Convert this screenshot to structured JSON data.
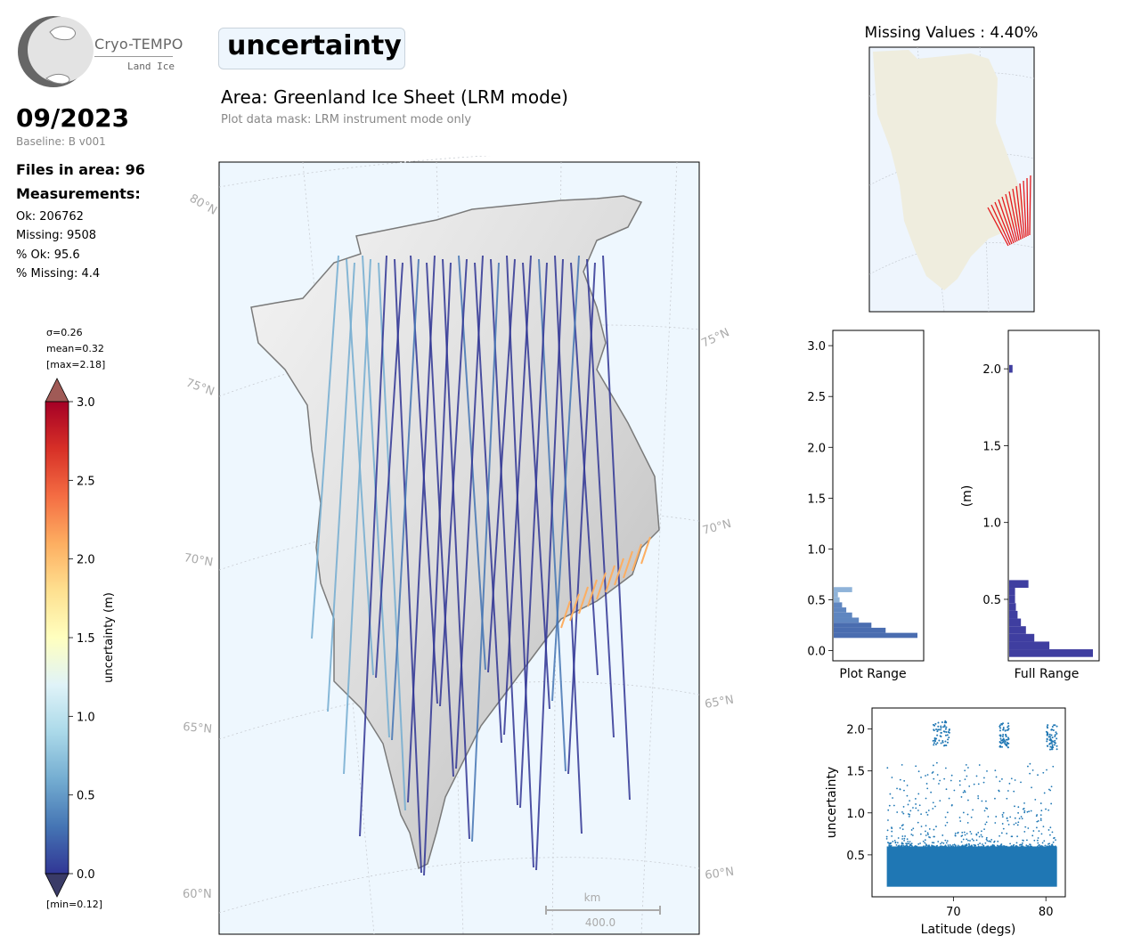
{
  "logo": {
    "name": "Cryo-TEMPO",
    "sub": "Land Ice"
  },
  "header": {
    "date": "09/2023",
    "baseline": "Baseline: B v001",
    "files": "Files in area: 96",
    "measurements_title": "Measurements:",
    "stats": [
      "Ok: 206762",
      "Missing: 9508",
      "% Ok: 95.6",
      "% Missing: 4.4"
    ]
  },
  "title": "uncertainty",
  "area": "Area: Greenland Ice Sheet (LRM mode)",
  "mask_note": "Plot data mask: LRM instrument mode only",
  "colorbar": {
    "sigma": "σ=0.26",
    "mean": "mean=0.32",
    "max": "[max=2.18]",
    "min": "[min=0.12]",
    "label": "uncertainty (m)",
    "ticks": [
      "3.0",
      "2.5",
      "2.0",
      "1.5",
      "1.0",
      "0.5",
      "0.0"
    ],
    "range": [
      0,
      3
    ],
    "colormap": [
      "#313695",
      "#4575b4",
      "#74add1",
      "#abd9e9",
      "#e0f3f8",
      "#ffffbf",
      "#fee090",
      "#fdae61",
      "#f46d43",
      "#d73027",
      "#a50026"
    ]
  },
  "main_map": {
    "lat_labels": [
      "80°N",
      "75°N",
      "70°N",
      "65°N",
      "60°N",
      "75°N",
      "70°N",
      "65°N",
      "60°N"
    ],
    "scale_unit": "km",
    "scale_value": "400.0"
  },
  "inset_map": {
    "title": "Missing Values : 4.40%",
    "land_color": "#efedde",
    "sea_color": "#eef5fd",
    "missing_color": "#e41a1c"
  },
  "chart_data": [
    {
      "type": "bar",
      "orientation": "horizontal",
      "xlabel": "Plot Range",
      "ylim": [
        -0.1,
        3.15
      ],
      "yticks": [
        "0.0",
        "0.5",
        "1.0",
        "1.5",
        "2.0",
        "2.5",
        "3.0"
      ],
      "bins": [
        {
          "y": 0.15,
          "value": 1.0
        },
        {
          "y": 0.2,
          "value": 0.62
        },
        {
          "y": 0.25,
          "value": 0.45
        },
        {
          "y": 0.3,
          "value": 0.3
        },
        {
          "y": 0.35,
          "value": 0.22
        },
        {
          "y": 0.4,
          "value": 0.15
        },
        {
          "y": 0.45,
          "value": 0.1
        },
        {
          "y": 0.5,
          "value": 0.07
        },
        {
          "y": 0.55,
          "value": 0.05
        },
        {
          "y": 0.6,
          "value": 0.22
        }
      ]
    },
    {
      "type": "bar",
      "orientation": "horizontal",
      "xlabel": "Full Range",
      "ylabel": "(m)",
      "ylim": [
        0.1,
        2.25
      ],
      "yticks": [
        "0.5",
        "1.0",
        "1.5",
        "2.0"
      ],
      "bins": [
        {
          "y": 0.15,
          "value": 1.0
        },
        {
          "y": 0.2,
          "value": 0.48
        },
        {
          "y": 0.25,
          "value": 0.3
        },
        {
          "y": 0.3,
          "value": 0.2
        },
        {
          "y": 0.35,
          "value": 0.14
        },
        {
          "y": 0.4,
          "value": 0.1
        },
        {
          "y": 0.45,
          "value": 0.08
        },
        {
          "y": 0.5,
          "value": 0.07
        },
        {
          "y": 0.55,
          "value": 0.07
        },
        {
          "y": 0.6,
          "value": 0.23
        },
        {
          "y": 2.0,
          "value": 0.04
        }
      ]
    },
    {
      "type": "scatter",
      "xlabel": "Latitude (degs)",
      "ylabel": "uncertainty",
      "xlim": [
        61.2,
        82.1
      ],
      "ylim": [
        0.0,
        2.25
      ],
      "xticks": [
        "70",
        "80"
      ],
      "yticks": [
        "0.5",
        "1.0",
        "1.5",
        "2.0"
      ],
      "color": "#1f77b4",
      "latitude_range": [
        62.8,
        81.2
      ],
      "dense_band": [
        0.12,
        0.6
      ],
      "high_value_clusters": [
        {
          "lat": [
            67.8,
            69.6
          ],
          "value": 1.95
        },
        {
          "lat": [
            75.0,
            76.0
          ],
          "value": 1.93
        },
        {
          "lat": [
            80.0,
            81.2
          ],
          "value": 1.9
        }
      ]
    }
  ]
}
